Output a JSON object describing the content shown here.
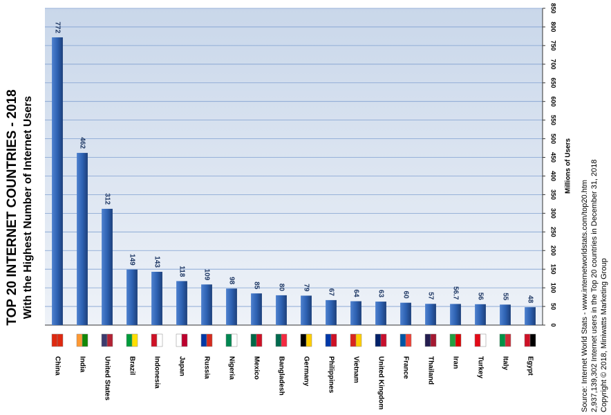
{
  "chart_data": {
    "type": "bar",
    "title": "TOP 20 INTERNET COUNTRIES - 2018",
    "subtitle": "With the Highest Number of Internet Users",
    "y_label": "Millions of Users",
    "notes": [
      "Source: Internet World Stats -  www.internetworldstats.com/top20.htm",
      "2,937,139,302 Internet users in the Top 20 countries in December 31, 2018",
      "Copyright © 2018, Miniwatts Marketing Group"
    ],
    "categories": [
      "China",
      "India",
      "United States",
      "Brazil",
      "Indonesia",
      "Japan",
      "Russia",
      "Nigeria",
      "Mexico",
      "Bangladesh",
      "Germany",
      "Philippines",
      "Vietnam",
      "United Kingdom",
      "France",
      "Thailand",
      "Iran",
      "Turkey",
      "Italy",
      "Egypt"
    ],
    "values": [
      772,
      462,
      312,
      149,
      143,
      118,
      109,
      98,
      85,
      80,
      79,
      67,
      64,
      63,
      60,
      57,
      56.7,
      56,
      55,
      48
    ],
    "color": "#2e62b3",
    "ylim": [
      0,
      850
    ],
    "yticks": [
      0,
      50,
      100,
      150,
      200,
      250,
      300,
      350,
      400,
      450,
      500,
      550,
      600,
      650,
      700,
      750,
      800,
      850
    ],
    "grid": true
  }
}
